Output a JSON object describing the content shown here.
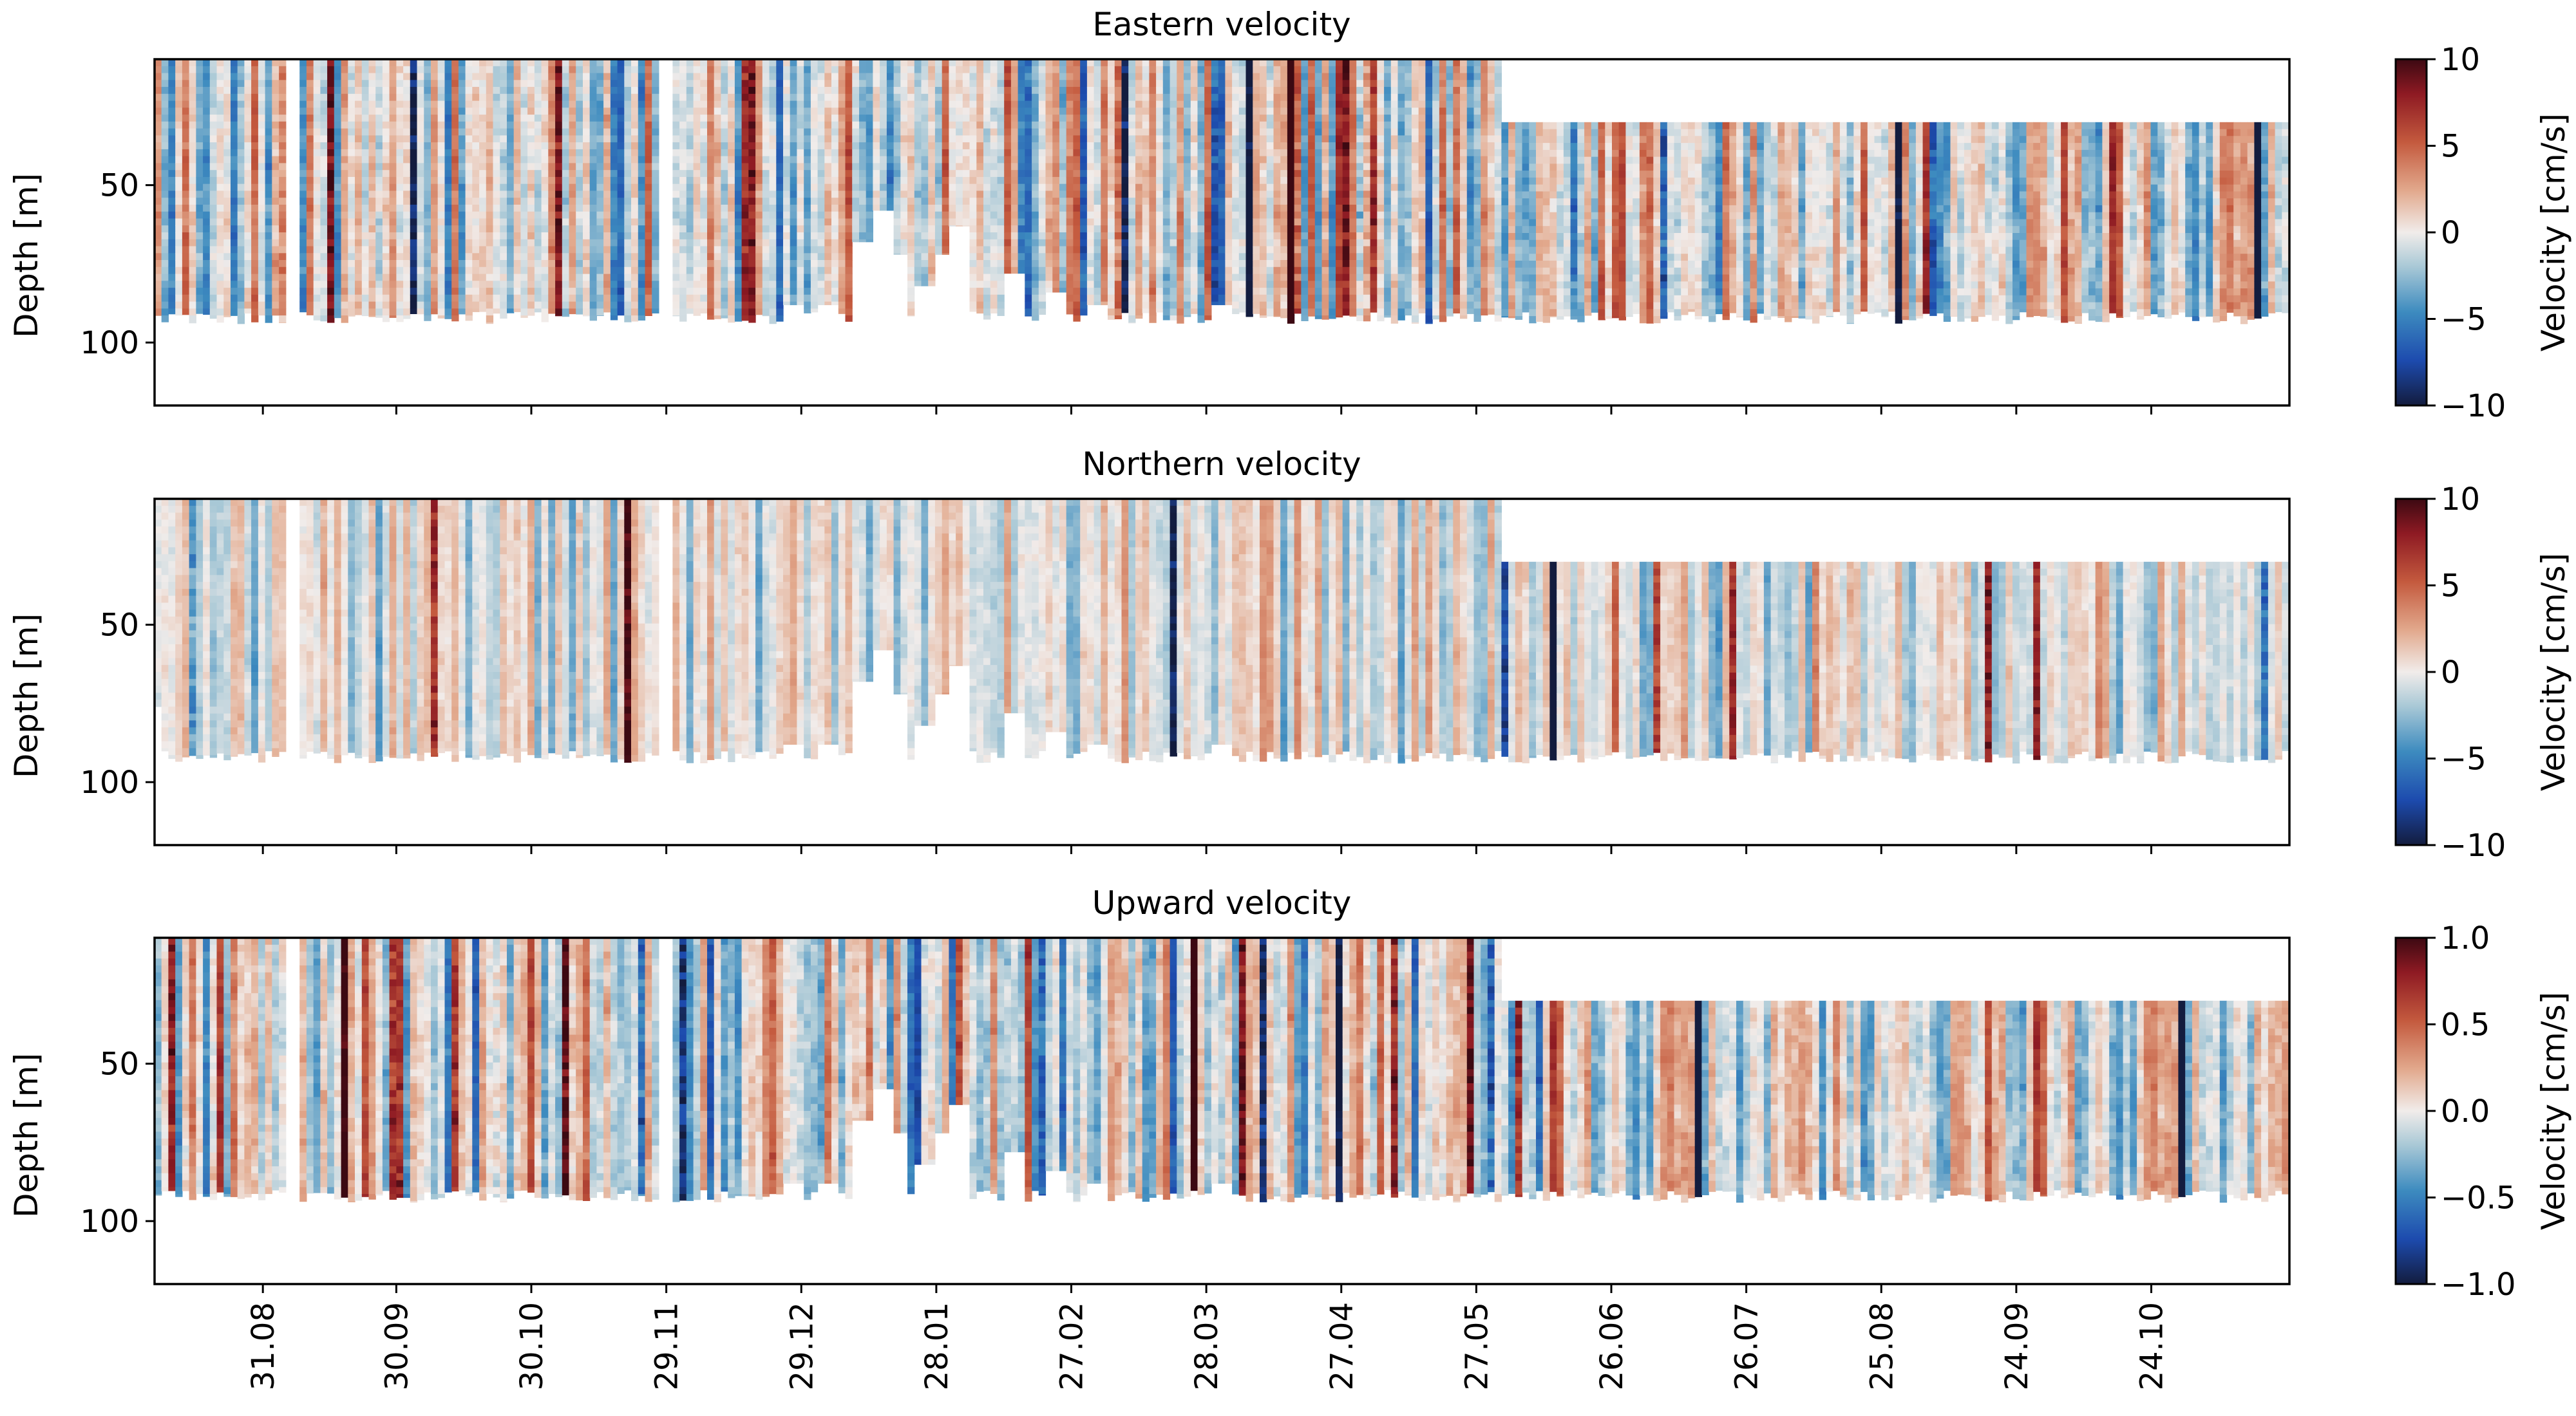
{
  "chart_data": [
    {
      "type": "heatmap",
      "title": "Eastern velocity",
      "ylabel": "Depth [m]",
      "yticks": [
        50,
        100
      ],
      "ylim": [
        120,
        10
      ],
      "colorbar": {
        "label": "Velocity [cm/s]",
        "min": -10,
        "max": 10,
        "ticks": [
          10,
          5,
          0,
          -5,
          -10
        ],
        "tick_labels": [
          "10",
          "5",
          "0",
          "−5",
          "−10"
        ]
      },
      "profile_bands": [
        {
          "weeks": [
            0,
            43
          ],
          "depth": [
            10,
            94
          ]
        },
        {
          "weeks": [
            43,
            68
          ],
          "depth": [
            30,
            94
          ]
        }
      ],
      "gaps": [
        {
          "weeks": [
            4.2,
            4.7
          ],
          "depth": [
            10,
            120
          ]
        },
        {
          "weeks": [
            16.0,
            16.4
          ],
          "depth": [
            10,
            120
          ]
        }
      ],
      "short_profiles": [
        {
          "week": 20.3,
          "bottom": 88
        },
        {
          "week": 21.3,
          "bottom": 88
        },
        {
          "week": 22.4,
          "bottom": 68
        },
        {
          "week": 23.0,
          "bottom": 58
        },
        {
          "week": 23.5,
          "bottom": 72
        },
        {
          "week": 24.4,
          "bottom": 82
        },
        {
          "week": 24.9,
          "bottom": 72
        },
        {
          "week": 25.5,
          "bottom": 63
        },
        {
          "week": 27.2,
          "bottom": 78
        },
        {
          "week": 28.5,
          "bottom": 84
        },
        {
          "week": 30.0,
          "bottom": 88
        },
        {
          "week": 33.8,
          "bottom": 88
        }
      ]
    },
    {
      "type": "heatmap",
      "title": "Northern velocity",
      "ylabel": "Depth [m]",
      "yticks": [
        50,
        100
      ],
      "ylim": [
        120,
        10
      ],
      "colorbar": {
        "label": "Velocity [cm/s]",
        "min": -10,
        "max": 10,
        "ticks": [
          10,
          5,
          0,
          -5,
          -10
        ],
        "tick_labels": [
          "10",
          "5",
          "0",
          "−5",
          "−10"
        ]
      },
      "profile_bands": [
        {
          "weeks": [
            0,
            43
          ],
          "depth": [
            10,
            94
          ]
        },
        {
          "weeks": [
            43,
            68
          ],
          "depth": [
            30,
            94
          ]
        }
      ],
      "gaps": [
        {
          "weeks": [
            0,
            0.3
          ],
          "depth": [
            75,
            120
          ]
        },
        {
          "weeks": [
            4.2,
            4.7
          ],
          "depth": [
            10,
            120
          ]
        },
        {
          "weeks": [
            16.0,
            16.4
          ],
          "depth": [
            10,
            120
          ]
        }
      ],
      "short_profiles": [
        {
          "week": 20.3,
          "bottom": 88
        },
        {
          "week": 21.3,
          "bottom": 88
        },
        {
          "week": 22.4,
          "bottom": 68
        },
        {
          "week": 23.0,
          "bottom": 58
        },
        {
          "week": 23.5,
          "bottom": 72
        },
        {
          "week": 24.4,
          "bottom": 82
        },
        {
          "week": 24.9,
          "bottom": 72
        },
        {
          "week": 25.5,
          "bottom": 63
        },
        {
          "week": 27.2,
          "bottom": 78
        },
        {
          "week": 28.5,
          "bottom": 84
        },
        {
          "week": 30.0,
          "bottom": 88
        },
        {
          "week": 33.8,
          "bottom": 88
        }
      ]
    },
    {
      "type": "heatmap",
      "title": "Upward velocity",
      "ylabel": "Depth [m]",
      "yticks": [
        50,
        100
      ],
      "ylim": [
        120,
        10
      ],
      "colorbar": {
        "label": "Velocity [cm/s]",
        "min": -1.0,
        "max": 1.0,
        "ticks": [
          1.0,
          0.5,
          0.0,
          -0.5,
          -1.0
        ],
        "tick_labels": [
          "1.0",
          "0.5",
          "0.0",
          "−0.5",
          "−1.0"
        ]
      },
      "profile_bands": [
        {
          "weeks": [
            0,
            43
          ],
          "depth": [
            10,
            94
          ]
        },
        {
          "weeks": [
            43,
            68
          ],
          "depth": [
            30,
            94
          ]
        }
      ],
      "gaps": [
        {
          "weeks": [
            4.2,
            4.7
          ],
          "depth": [
            10,
            120
          ]
        },
        {
          "weeks": [
            16.0,
            16.4
          ],
          "depth": [
            10,
            120
          ]
        }
      ],
      "short_profiles": [
        {
          "week": 20.3,
          "bottom": 88
        },
        {
          "week": 21.3,
          "bottom": 88
        },
        {
          "week": 22.4,
          "bottom": 68
        },
        {
          "week": 23.0,
          "bottom": 58
        },
        {
          "week": 23.5,
          "bottom": 72
        },
        {
          "week": 24.4,
          "bottom": 82
        },
        {
          "week": 24.9,
          "bottom": 72
        },
        {
          "week": 25.5,
          "bottom": 63
        },
        {
          "week": 27.2,
          "bottom": 78
        },
        {
          "week": 28.5,
          "bottom": 84
        },
        {
          "week": 30.0,
          "bottom": 88
        },
        {
          "week": 33.8,
          "bottom": 88
        }
      ]
    }
  ],
  "shared_x": {
    "xlim_weeks": [
      0,
      68
    ],
    "tick_weeks": [
      3.45,
      7.7,
      12.0,
      16.3,
      20.6,
      24.9,
      29.2,
      33.5,
      37.8,
      42.1,
      46.4,
      50.7,
      55.0,
      59.3,
      63.6
    ],
    "tick_labels": [
      "31.08",
      "30.09",
      "30.10",
      "29.11",
      "29.12",
      "28.01",
      "27.02",
      "28.03",
      "27.04",
      "27.05",
      "26.06",
      "26.07",
      "25.08",
      "24.09",
      "24.10"
    ]
  },
  "colors": {
    "colormap": "balance",
    "stops": [
      "#131c3e",
      "#1d4bae",
      "#3d8bbf",
      "#a8c8d6",
      "#f1ecea",
      "#e2a98d",
      "#c45a3e",
      "#8e1a23",
      "#3c0912"
    ],
    "axes": "#000000",
    "background": "#ffffff"
  }
}
